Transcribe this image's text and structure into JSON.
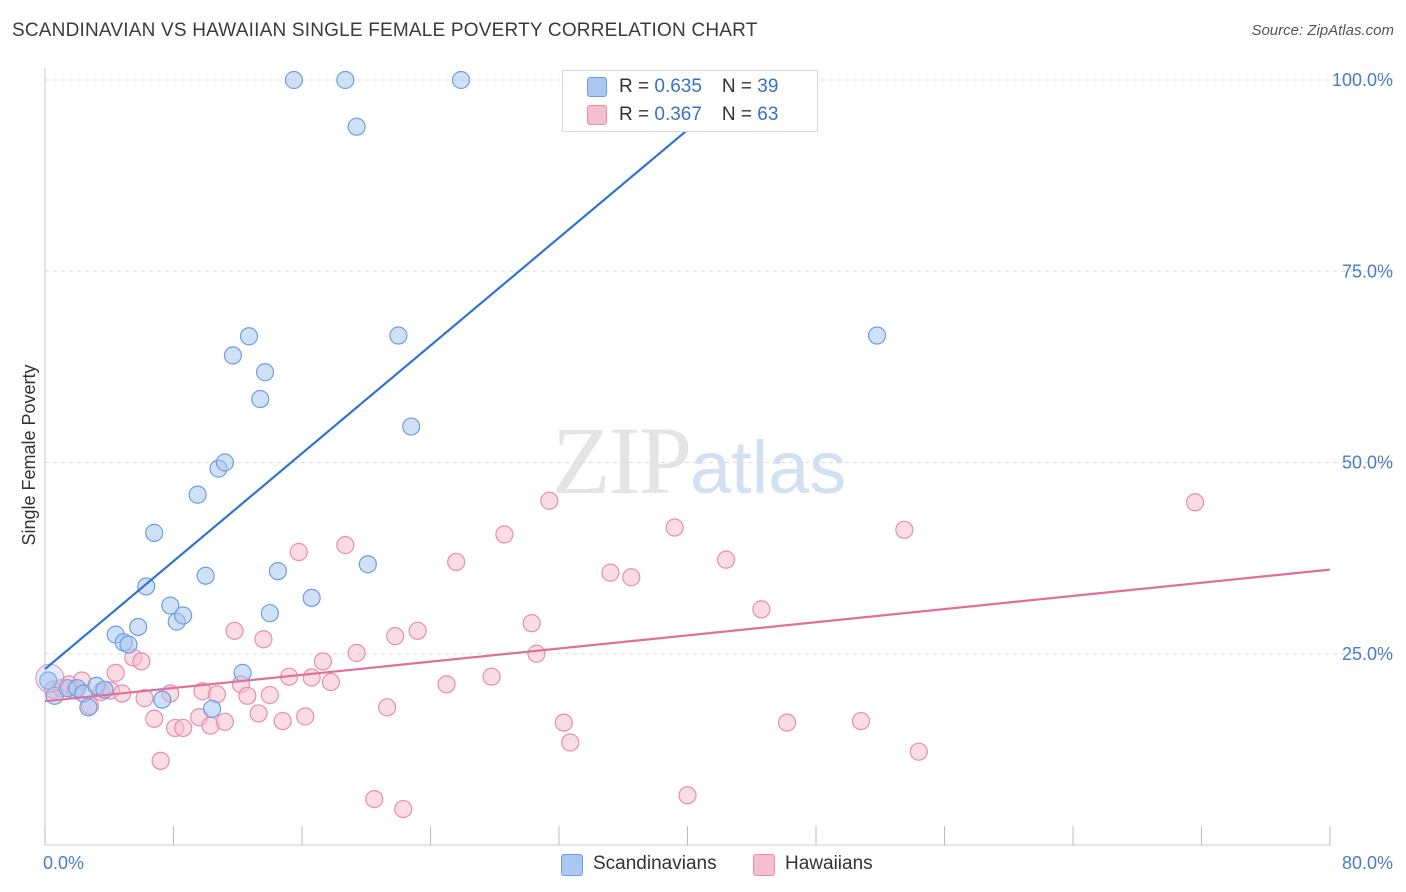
{
  "title": "SCANDINAVIAN VS HAWAIIAN SINGLE FEMALE POVERTY CORRELATION CHART",
  "source": "Source: ZipAtlas.com",
  "watermark": {
    "zip": "ZIP",
    "atlas": "atlas"
  },
  "legend": {
    "scandinavians": {
      "r_label": "R = ",
      "r_value": "0.635",
      "n_label": "N = ",
      "n_value": "39"
    },
    "hawaiians": {
      "r_label": "R = ",
      "r_value": "0.367",
      "n_label": "N = ",
      "n_value": "63"
    }
  },
  "bottom_legend": {
    "scandinavians": "Scandinavians",
    "hawaiians": "Hawaiians"
  },
  "colors": {
    "scandinavians_fill": "#a9c7f0",
    "scandinavians_stroke": "#6d9ee0",
    "scandinavians_line": "#2f74d0",
    "hawaiians_fill": "#f6bfd0",
    "hawaiians_stroke": "#e98dab",
    "hawaiians_line": "#e0709a",
    "tick_color": "#4a7cc9",
    "grid": "#dddddd"
  },
  "chart_data": {
    "type": "scatter",
    "title": "SCANDINAVIAN VS HAWAIIAN SINGLE FEMALE POVERTY CORRELATION CHART",
    "xlabel": "",
    "ylabel": "Single Female Poverty",
    "xlim": [
      0,
      80
    ],
    "ylim": [
      0,
      100
    ],
    "x_tick_labels": [
      {
        "value": 0,
        "label": "0.0%"
      },
      {
        "value": 80,
        "label": "80.0%"
      }
    ],
    "y_tick_labels": [
      {
        "value": 25,
        "label": "25.0%"
      },
      {
        "value": 50,
        "label": "50.0%"
      },
      {
        "value": 75,
        "label": "75.0%"
      },
      {
        "value": 100,
        "label": "100.0%"
      }
    ],
    "x_minor_ticks": [
      0,
      8,
      16,
      24,
      32,
      40,
      48,
      56,
      64,
      72,
      80
    ],
    "grid": true,
    "legend_position": "top-center",
    "series": [
      {
        "name": "Scandinavians",
        "r": 0.635,
        "n": 39,
        "trend": {
          "x": [
            0,
            43.7
          ],
          "y": [
            23.0,
            100.0
          ]
        },
        "points": [
          [
            0.2,
            21.5
          ],
          [
            0.6,
            19.5
          ],
          [
            1.4,
            20.5
          ],
          [
            2.0,
            20.5
          ],
          [
            2.4,
            19.8
          ],
          [
            2.7,
            18.0
          ],
          [
            3.2,
            20.8
          ],
          [
            3.7,
            20.3
          ],
          [
            4.4,
            27.5
          ],
          [
            4.9,
            26.5
          ],
          [
            5.2,
            26.2
          ],
          [
            5.8,
            28.5
          ],
          [
            6.3,
            33.8
          ],
          [
            6.8,
            40.8
          ],
          [
            7.3,
            19.0
          ],
          [
            7.8,
            31.3
          ],
          [
            8.2,
            29.2
          ],
          [
            8.6,
            30.0
          ],
          [
            9.5,
            45.8
          ],
          [
            10.0,
            35.2
          ],
          [
            10.4,
            17.8
          ],
          [
            10.8,
            49.2
          ],
          [
            11.2,
            50.0
          ],
          [
            11.7,
            64.0
          ],
          [
            12.3,
            22.5
          ],
          [
            12.7,
            66.5
          ],
          [
            13.4,
            58.3
          ],
          [
            13.7,
            61.8
          ],
          [
            14.0,
            30.3
          ],
          [
            14.5,
            35.8
          ],
          [
            15.5,
            100.0
          ],
          [
            16.6,
            32.3
          ],
          [
            18.7,
            100.0
          ],
          [
            19.4,
            93.9
          ],
          [
            20.1,
            36.7
          ],
          [
            22.0,
            66.6
          ],
          [
            22.8,
            54.7
          ],
          [
            25.9,
            100.0
          ],
          [
            51.8,
            66.6
          ]
        ]
      },
      {
        "name": "Hawaiians",
        "r": 0.367,
        "n": 63,
        "trend": {
          "x": [
            0,
            80
          ],
          "y": [
            18.8,
            36.0
          ]
        },
        "points": [
          [
            0.5,
            20.3
          ],
          [
            1.0,
            20.5
          ],
          [
            1.5,
            21.0
          ],
          [
            1.9,
            20.2
          ],
          [
            2.3,
            21.5
          ],
          [
            2.8,
            18.2
          ],
          [
            3.5,
            20.0
          ],
          [
            4.1,
            20.2
          ],
          [
            4.4,
            22.5
          ],
          [
            4.8,
            19.8
          ],
          [
            5.5,
            24.5
          ],
          [
            6.0,
            24.0
          ],
          [
            6.2,
            19.2
          ],
          [
            6.8,
            16.5
          ],
          [
            7.2,
            11.0
          ],
          [
            7.8,
            19.8
          ],
          [
            8.1,
            15.3
          ],
          [
            8.6,
            15.3
          ],
          [
            9.6,
            16.7
          ],
          [
            9.8,
            20.1
          ],
          [
            10.3,
            15.6
          ],
          [
            10.7,
            19.7
          ],
          [
            11.2,
            16.1
          ],
          [
            11.8,
            28.0
          ],
          [
            12.2,
            21.0
          ],
          [
            12.6,
            19.5
          ],
          [
            13.3,
            17.2
          ],
          [
            13.6,
            26.9
          ],
          [
            14.0,
            19.6
          ],
          [
            14.8,
            16.2
          ],
          [
            15.2,
            22.0
          ],
          [
            15.8,
            38.3
          ],
          [
            16.2,
            16.8
          ],
          [
            16.6,
            21.9
          ],
          [
            17.3,
            24.0
          ],
          [
            17.8,
            21.3
          ],
          [
            18.7,
            39.2
          ],
          [
            19.4,
            25.1
          ],
          [
            20.5,
            6.0
          ],
          [
            21.3,
            18.0
          ],
          [
            21.8,
            27.3
          ],
          [
            22.3,
            4.7
          ],
          [
            23.2,
            28.0
          ],
          [
            25.0,
            21.0
          ],
          [
            25.6,
            37.0
          ],
          [
            27.8,
            22.0
          ],
          [
            28.6,
            40.6
          ],
          [
            30.3,
            29.0
          ],
          [
            30.6,
            25.0
          ],
          [
            31.4,
            45.0
          ],
          [
            32.3,
            16.0
          ],
          [
            32.7,
            13.4
          ],
          [
            35.2,
            35.6
          ],
          [
            36.5,
            35.0
          ],
          [
            39.2,
            41.5
          ],
          [
            40.0,
            6.5
          ],
          [
            42.4,
            37.3
          ],
          [
            44.6,
            30.8
          ],
          [
            46.2,
            16.0
          ],
          [
            50.8,
            16.2
          ],
          [
            53.5,
            41.2
          ],
          [
            54.4,
            12.2
          ],
          [
            71.6,
            44.8
          ]
        ]
      }
    ]
  }
}
